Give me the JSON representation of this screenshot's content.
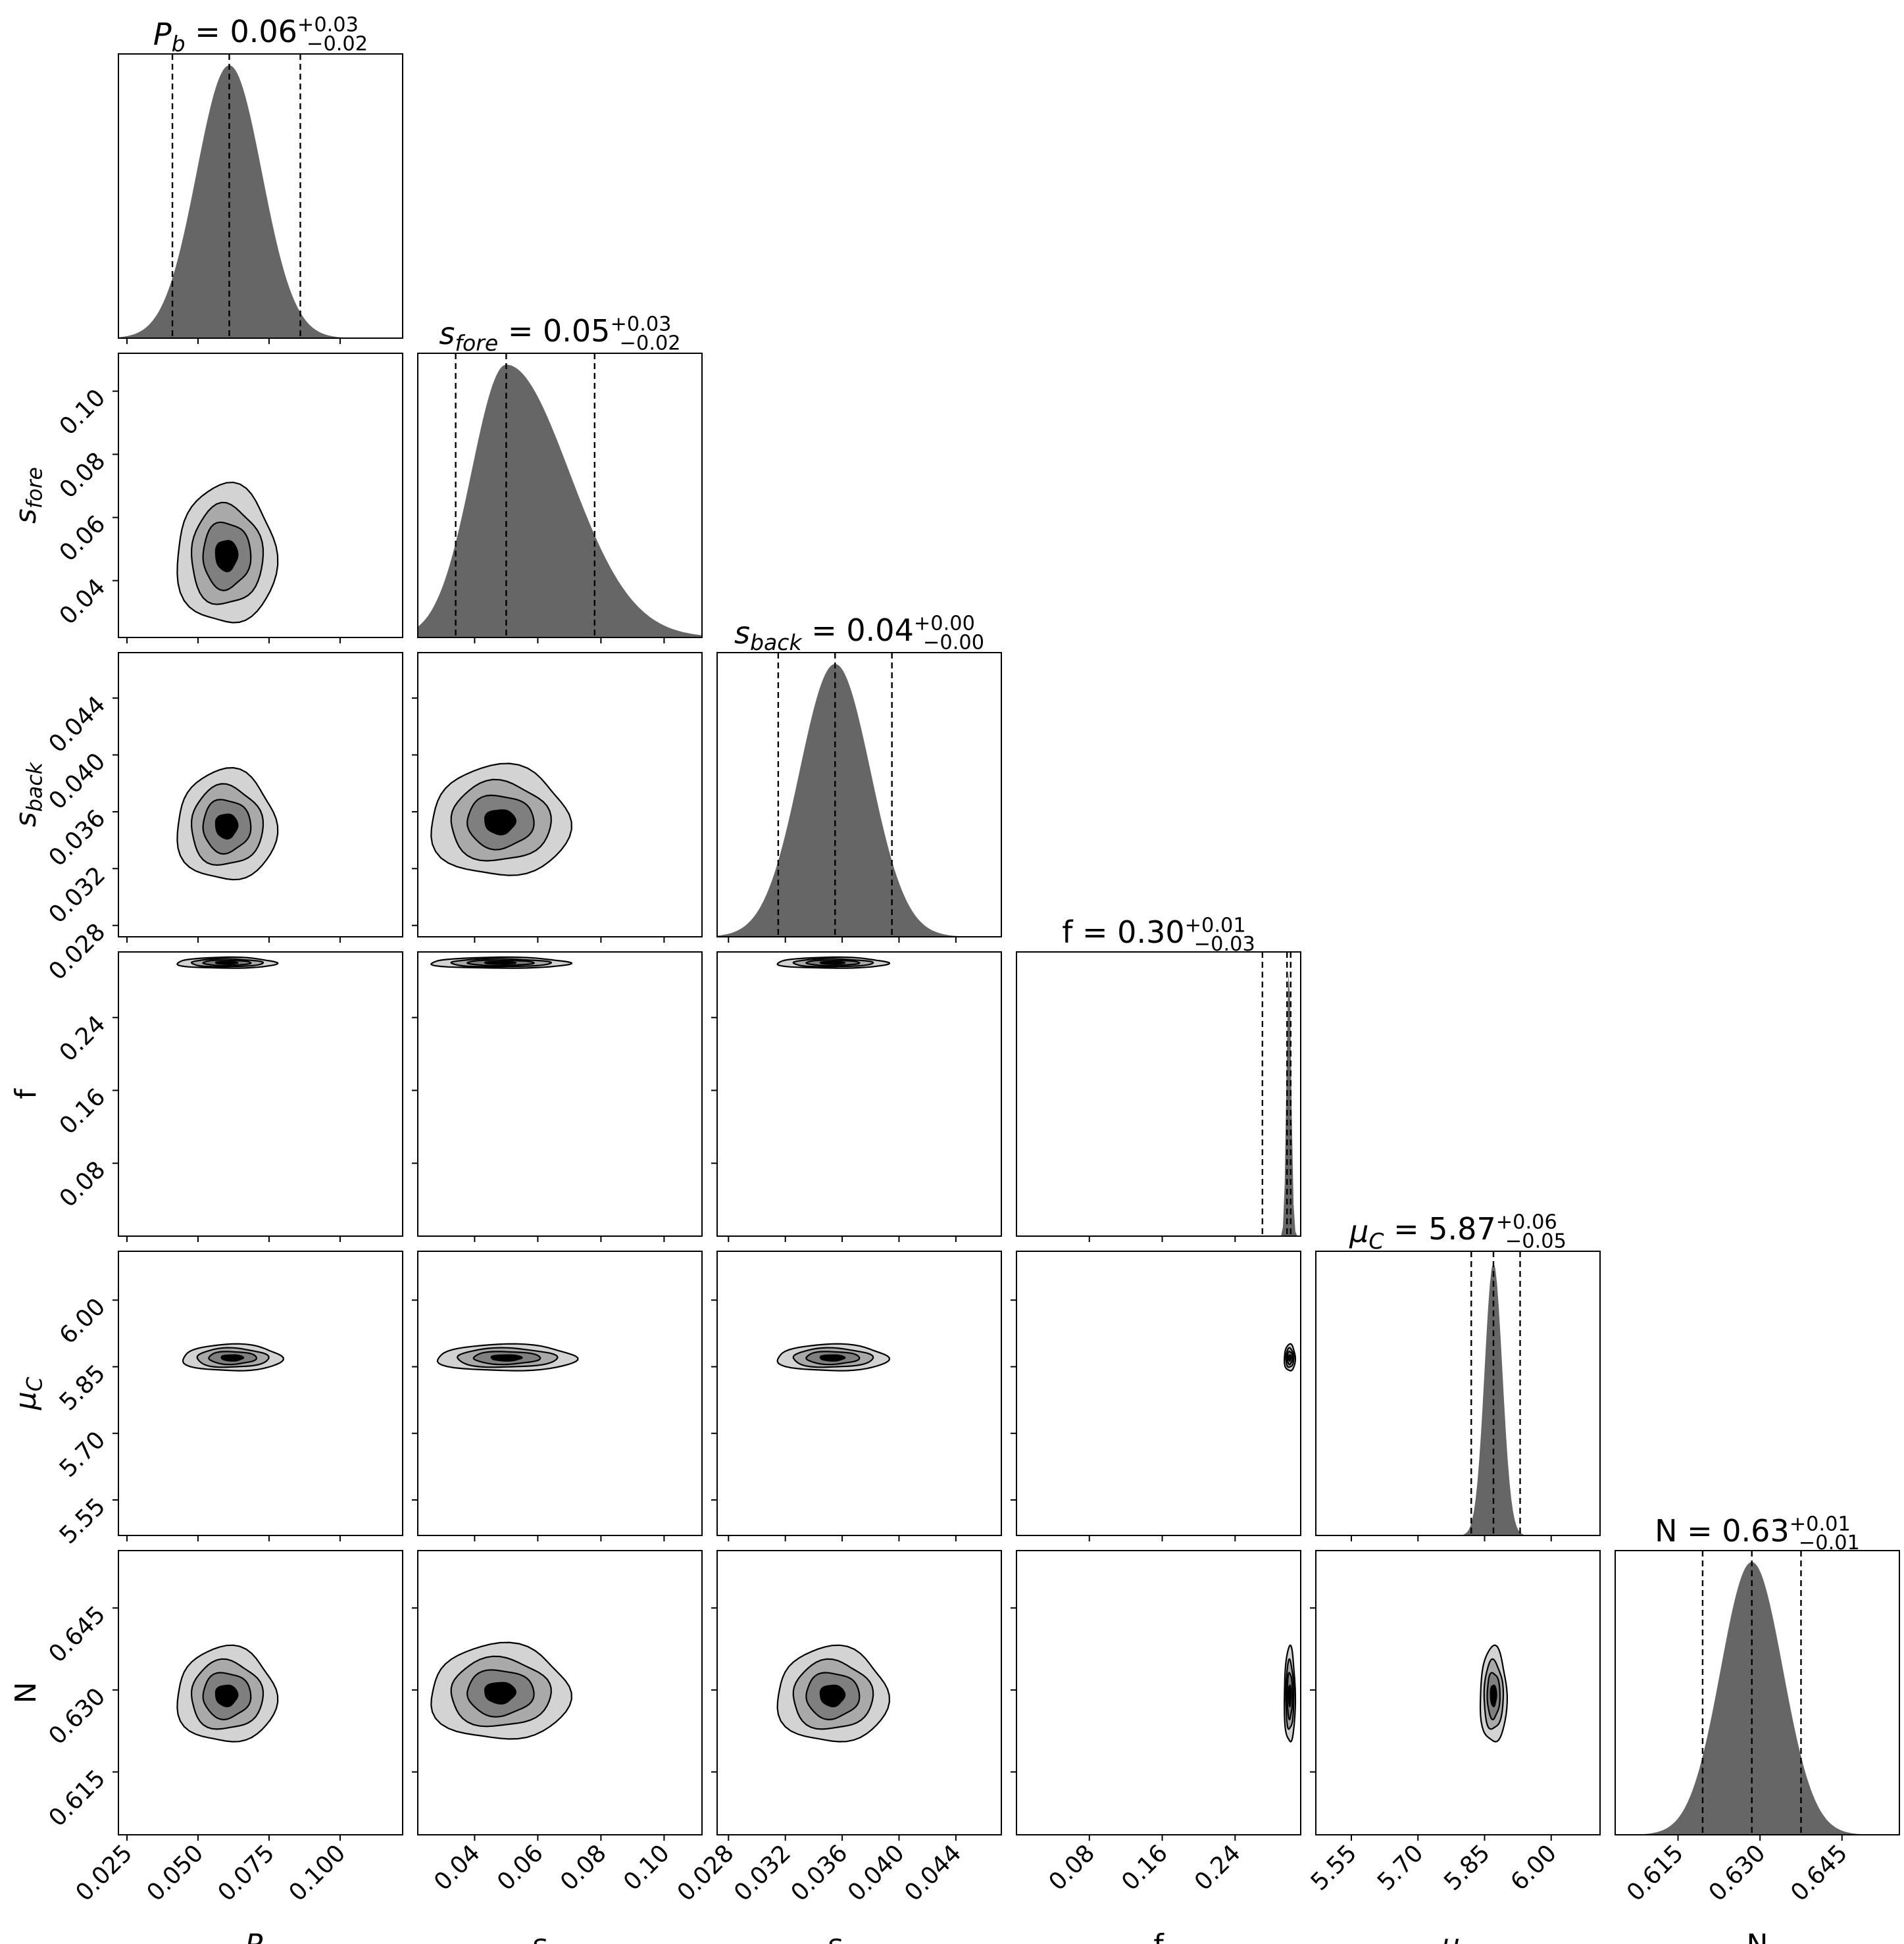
{
  "colors": {
    "hist_fill": "#666666",
    "contour_levels": [
      "#d3d3d3",
      "#a9a9a9",
      "#7f7f7f",
      "#000000"
    ],
    "frame": "#000000"
  },
  "chart_data": {
    "type": "corner",
    "grid": false,
    "parameters": [
      {
        "id": "Pb",
        "label": "P_b",
        "range": [
          0.022,
          0.122
        ],
        "ticks": [
          0.025,
          0.05,
          0.075,
          0.1
        ],
        "tick_labels": [
          "0.025",
          "0.050",
          "0.075",
          "0.100"
        ],
        "title": {
          "name": "P_b",
          "value": "0.06",
          "plus": "+0.03",
          "minus": "−0.02"
        },
        "quantiles": [
          0.041,
          0.061,
          0.086
        ],
        "mean": 0.061,
        "sd": 0.0115,
        "hist_peak_rel": 1.0
      },
      {
        "id": "sfore",
        "label": "s_fore",
        "range": [
          0.022,
          0.112
        ],
        "ticks": [
          0.04,
          0.06,
          0.08,
          0.1
        ],
        "tick_labels": [
          "0.04",
          "0.06",
          "0.08",
          "0.10"
        ],
        "title": {
          "name": "s_fore",
          "value": "0.05",
          "plus": "+0.03",
          "minus": "−0.02"
        },
        "quantiles": [
          0.034,
          0.05,
          0.078
        ],
        "mean": 0.05,
        "sd": 0.011,
        "hist_peak_rel": 1.0
      },
      {
        "id": "sback",
        "label": "s_back",
        "range": [
          0.0272,
          0.0472
        ],
        "ticks": [
          0.028,
          0.032,
          0.036,
          0.04,
          0.044
        ],
        "tick_labels": [
          "0.028",
          "0.032",
          "0.036",
          "0.040",
          "0.044"
        ],
        "title": {
          "name": "s_back",
          "value": "0.04",
          "plus": "+0.00",
          "minus": "−0.00"
        },
        "quantiles": [
          0.0315,
          0.0355,
          0.0395
        ],
        "mean": 0.0355,
        "sd": 0.0025,
        "hist_peak_rel": 1.0
      },
      {
        "id": "f",
        "label": "f",
        "range": [
          0.0,
          0.312
        ],
        "ticks": [
          0.08,
          0.16,
          0.24
        ],
        "tick_labels": [
          "0.08",
          "0.16",
          "0.24"
        ],
        "title": {
          "name": "f",
          "value": "0.30",
          "plus": "+0.01",
          "minus": "−0.03"
        },
        "quantiles": [
          0.27,
          0.297,
          0.301
        ],
        "mean": 0.299,
        "sd": 0.0025,
        "hist_peak_rel": 1.0
      },
      {
        "id": "muC",
        "label": "μ_C",
        "range": [
          5.47,
          6.11
        ],
        "ticks": [
          5.55,
          5.7,
          5.85,
          6.0
        ],
        "tick_labels": [
          "5.55",
          "5.70",
          "5.85",
          "6.00"
        ],
        "title": {
          "name": "μ_C",
          "value": "5.87",
          "plus": "+0.06",
          "minus": "−0.05"
        },
        "quantiles": [
          5.82,
          5.87,
          5.93
        ],
        "mean": 5.87,
        "sd": 0.02,
        "hist_peak_rel": 1.0
      },
      {
        "id": "N",
        "label": "N",
        "range": [
          0.6035,
          0.6555
        ],
        "ticks": [
          0.615,
          0.63,
          0.645
        ],
        "tick_labels": [
          "0.615",
          "0.630",
          "0.645"
        ],
        "title": {
          "name": "N",
          "value": "0.63",
          "plus": "+0.01",
          "minus": "−0.01"
        },
        "quantiles": [
          0.6195,
          0.6285,
          0.6375
        ],
        "mean": 0.6285,
        "sd": 0.0057,
        "hist_peak_rel": 1.0
      }
    ],
    "contours_2d": [
      {
        "x": "Pb",
        "y": "sfore",
        "center": [
          0.06,
          0.048
        ],
        "widths": [
          0.035,
          0.044
        ]
      },
      {
        "x": "Pb",
        "y": "sback",
        "center": [
          0.06,
          0.035
        ],
        "widths": [
          0.035,
          0.0078
        ]
      },
      {
        "x": "sfore",
        "y": "sback",
        "center": [
          0.048,
          0.0353
        ],
        "widths": [
          0.044,
          0.0078
        ]
      },
      {
        "x": "Pb",
        "y": "f",
        "center": [
          0.06,
          0.3
        ],
        "widths": [
          0.035,
          0.012
        ]
      },
      {
        "x": "sfore",
        "y": "f",
        "center": [
          0.048,
          0.3
        ],
        "widths": [
          0.044,
          0.012
        ]
      },
      {
        "x": "sback",
        "y": "f",
        "center": [
          0.0353,
          0.3
        ],
        "widths": [
          0.0078,
          0.012
        ]
      },
      {
        "x": "Pb",
        "y": "muC",
        "center": [
          0.062,
          5.87
        ],
        "widths": [
          0.035,
          0.06
        ]
      },
      {
        "x": "sfore",
        "y": "muC",
        "center": [
          0.05,
          5.87
        ],
        "widths": [
          0.044,
          0.06
        ]
      },
      {
        "x": "sback",
        "y": "muC",
        "center": [
          0.0353,
          5.87
        ],
        "widths": [
          0.0078,
          0.06
        ]
      },
      {
        "x": "f",
        "y": "muC",
        "center": [
          0.3,
          5.87
        ],
        "widths": [
          0.012,
          0.06
        ]
      },
      {
        "x": "Pb",
        "y": "N",
        "center": [
          0.06,
          0.629
        ],
        "widths": [
          0.035,
          0.0175
        ]
      },
      {
        "x": "sfore",
        "y": "N",
        "center": [
          0.048,
          0.6295
        ],
        "widths": [
          0.044,
          0.0175
        ]
      },
      {
        "x": "sback",
        "y": "N",
        "center": [
          0.0353,
          0.629
        ],
        "widths": [
          0.0078,
          0.0175
        ]
      },
      {
        "x": "f",
        "y": "N",
        "center": [
          0.3,
          0.629
        ],
        "widths": [
          0.012,
          0.0175
        ]
      },
      {
        "x": "muC",
        "y": "N",
        "center": [
          5.87,
          0.629
        ],
        "widths": [
          0.06,
          0.0175
        ]
      }
    ]
  }
}
